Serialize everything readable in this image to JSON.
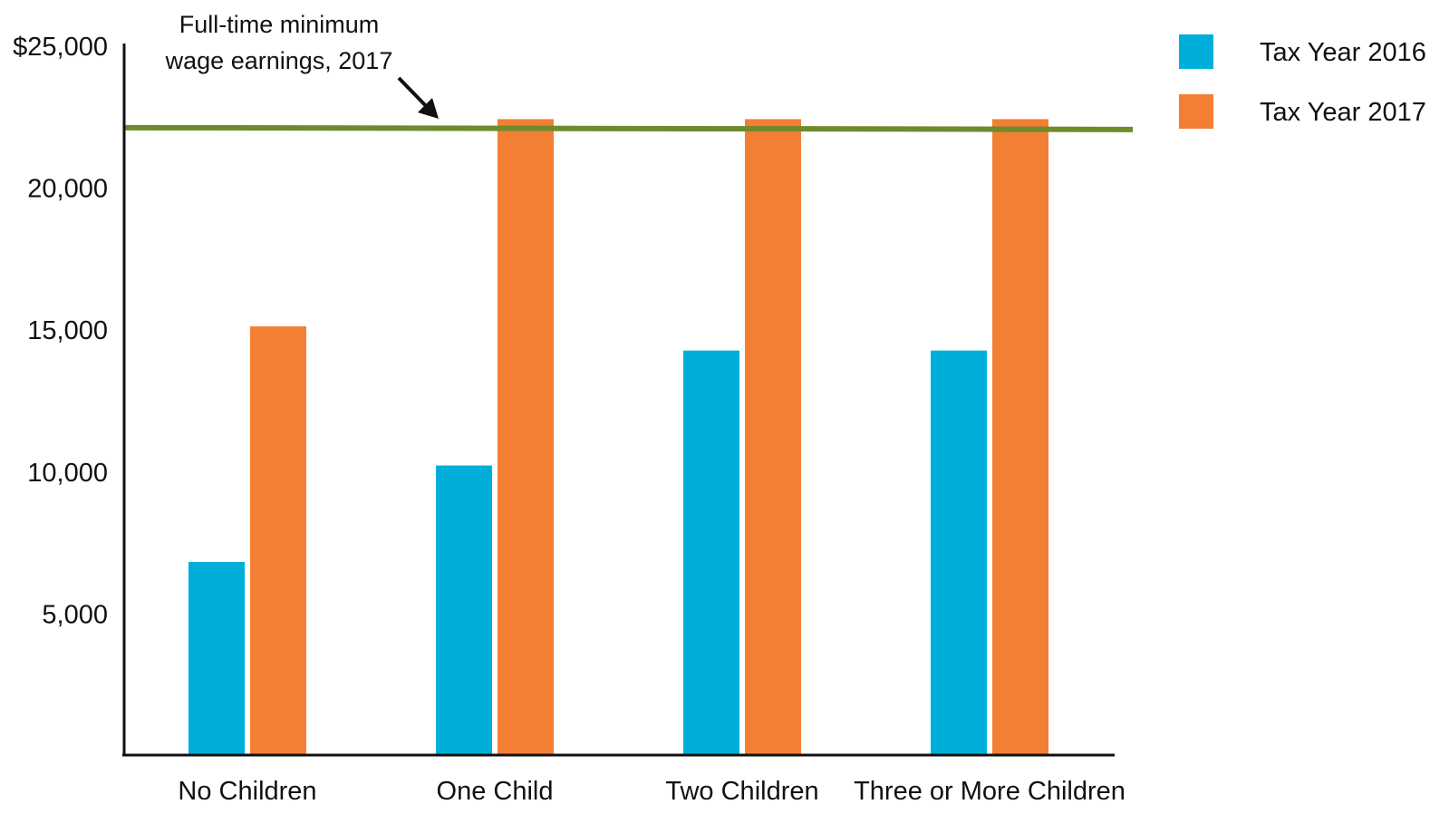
{
  "chart_data": {
    "type": "bar",
    "title": "",
    "xlabel": "",
    "ylabel": "",
    "categories": [
      "No Children",
      "One Child",
      "Two Children",
      "Three or More Children"
    ],
    "series": [
      {
        "name": "Tax Year 2016",
        "color": "#00AEDB",
        "values": [
          6800,
          10200,
          14250,
          14250
        ]
      },
      {
        "name": "Tax Year 2017",
        "color": "#F37F34",
        "values": [
          15100,
          22400,
          22400,
          22400
        ]
      }
    ],
    "yticks": [
      {
        "value": 5000,
        "label": "5,000"
      },
      {
        "value": 10000,
        "label": "10,000"
      },
      {
        "value": 15000,
        "label": "15,000"
      },
      {
        "value": 20000,
        "label": "20,000"
      },
      {
        "value": 25000,
        "label": "$25,000"
      }
    ],
    "ylim": [
      0,
      25000
    ],
    "reference_line": {
      "value": 22100,
      "color": "#6E8B2B",
      "label_lines": [
        "Full-time minimum",
        "wage earnings, 2017"
      ]
    },
    "legend_position": "top-right",
    "grid": false
  }
}
